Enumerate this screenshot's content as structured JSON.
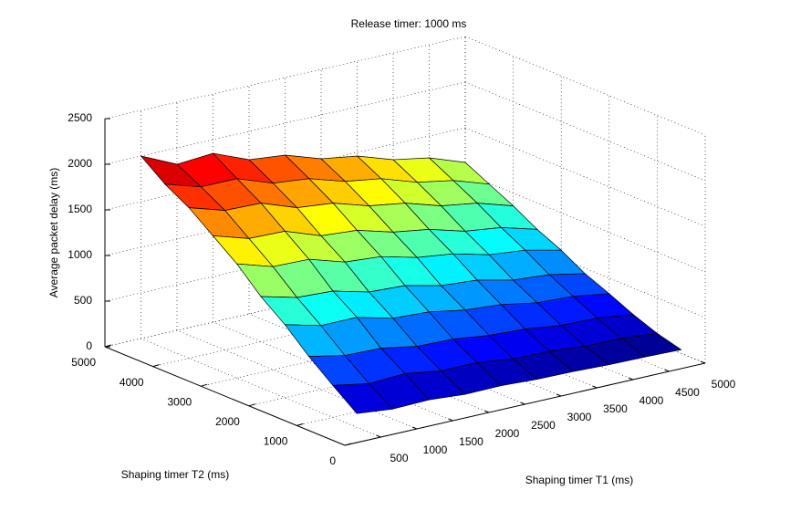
{
  "chart_data": {
    "type": "surface",
    "title": "Release timer: 1000 ms",
    "x_label": "Shaping timer T1 (ms)",
    "y_label": "Shaping timer T2 (ms)",
    "z_label": "Average packet delay (ms)",
    "x": [
      500,
      1000,
      1500,
      2000,
      2500,
      3000,
      3500,
      4000,
      4500,
      5000
    ],
    "y": [
      500,
      1000,
      1500,
      2000,
      2500,
      3000,
      3500,
      4000,
      4500,
      5000
    ],
    "z": [
      [
        150,
        110,
        120,
        90,
        95,
        75,
        70,
        55,
        50,
        40
      ],
      [
        350,
        280,
        300,
        240,
        240,
        190,
        185,
        150,
        145,
        110
      ],
      [
        560,
        480,
        470,
        400,
        390,
        340,
        320,
        270,
        260,
        210
      ],
      [
        800,
        700,
        700,
        600,
        580,
        510,
        480,
        410,
        390,
        330
      ],
      [
        1000,
        900,
        880,
        780,
        760,
        670,
        640,
        550,
        520,
        440
      ],
      [
        1250,
        1130,
        1120,
        1000,
        970,
        870,
        820,
        720,
        680,
        590
      ],
      [
        1450,
        1330,
        1320,
        1180,
        1150,
        1040,
        980,
        870,
        820,
        710
      ],
      [
        1650,
        1530,
        1520,
        1380,
        1340,
        1220,
        1160,
        1040,
        980,
        860
      ],
      [
        1800,
        1680,
        1680,
        1540,
        1500,
        1380,
        1320,
        1190,
        1120,
        990
      ],
      [
        2000,
        1820,
        1850,
        1690,
        1650,
        1520,
        1460,
        1330,
        1260,
        1120
      ]
    ],
    "xlim": [
      0,
      5000
    ],
    "ylim": [
      0,
      5000
    ],
    "zlim": [
      0,
      2500
    ],
    "xticks": [
      500,
      1000,
      1500,
      2000,
      2500,
      3000,
      3500,
      4000,
      4500,
      5000
    ],
    "yticks": [
      0,
      1000,
      2000,
      3000,
      4000,
      5000
    ],
    "zticks": [
      0,
      500,
      1000,
      1500,
      2000,
      2500
    ],
    "colormap": "jet",
    "grid": true
  }
}
